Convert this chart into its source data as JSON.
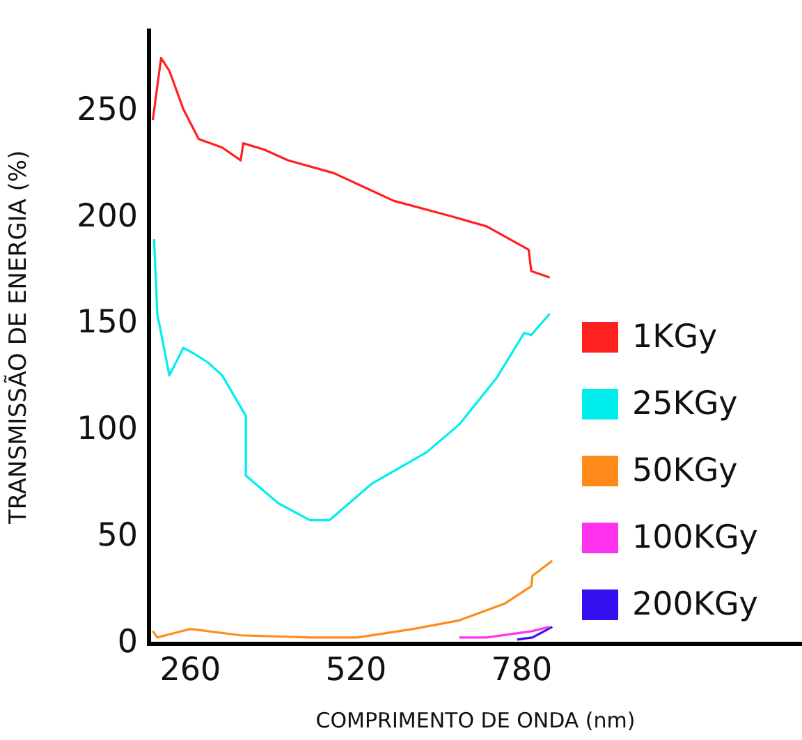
{
  "chart_data": {
    "type": "line",
    "xlabel": "COMPRIMENTO DE ONDA (nm)",
    "ylabel": "TRANSMISSÃO DE ENERGIA (%)",
    "xlim": [
      195,
      1220
    ],
    "xticks": [
      260,
      520,
      780
    ],
    "ylim": [
      0,
      288
    ],
    "yticks": [
      0,
      50,
      100,
      150,
      200,
      250
    ],
    "grid": false,
    "legend": "right",
    "marker": "none",
    "line_style": "solid",
    "series": [
      {
        "name": "1KGy",
        "color": "#ff2020",
        "x": [
          201,
          214,
          227,
          249,
          273,
          310,
          339,
          343,
          376,
          413,
          485,
          579,
          666,
          725,
          791,
          795,
          824
        ],
        "values": [
          246,
          275,
          269,
          251,
          237,
          233,
          227,
          235,
          232,
          227,
          221,
          208,
          201,
          196,
          185,
          175,
          172
        ]
      },
      {
        "name": "25KGy",
        "color": "#00eeee",
        "x": [
          203,
          208,
          227,
          249,
          267,
          288,
          310,
          347,
          347,
          398,
          448,
          478,
          544,
          631,
          682,
          741,
          784,
          795,
          824
        ],
        "values": [
          190,
          155,
          126,
          139,
          136,
          132,
          126,
          107,
          79,
          66,
          58,
          58,
          75,
          90,
          103,
          125,
          146,
          145,
          155
        ]
      },
      {
        "name": "50KGy",
        "color": "#ff8c1a",
        "x": [
          201,
          208,
          260,
          339,
          448,
          522,
          610,
          682,
          754,
          795,
          797,
          828
        ],
        "values": [
          6,
          3,
          7,
          4,
          3,
          3,
          7,
          11,
          19,
          27,
          32,
          39
        ]
      },
      {
        "name": "100KGy",
        "color": "#ff33ee",
        "x": [
          682,
          725,
          797,
          824
        ],
        "values": [
          3,
          3,
          6,
          8
        ]
      },
      {
        "name": "200KGy",
        "color": "#3311ee",
        "x": [
          773,
          797,
          828
        ],
        "values": [
          2,
          3,
          8
        ]
      }
    ]
  }
}
